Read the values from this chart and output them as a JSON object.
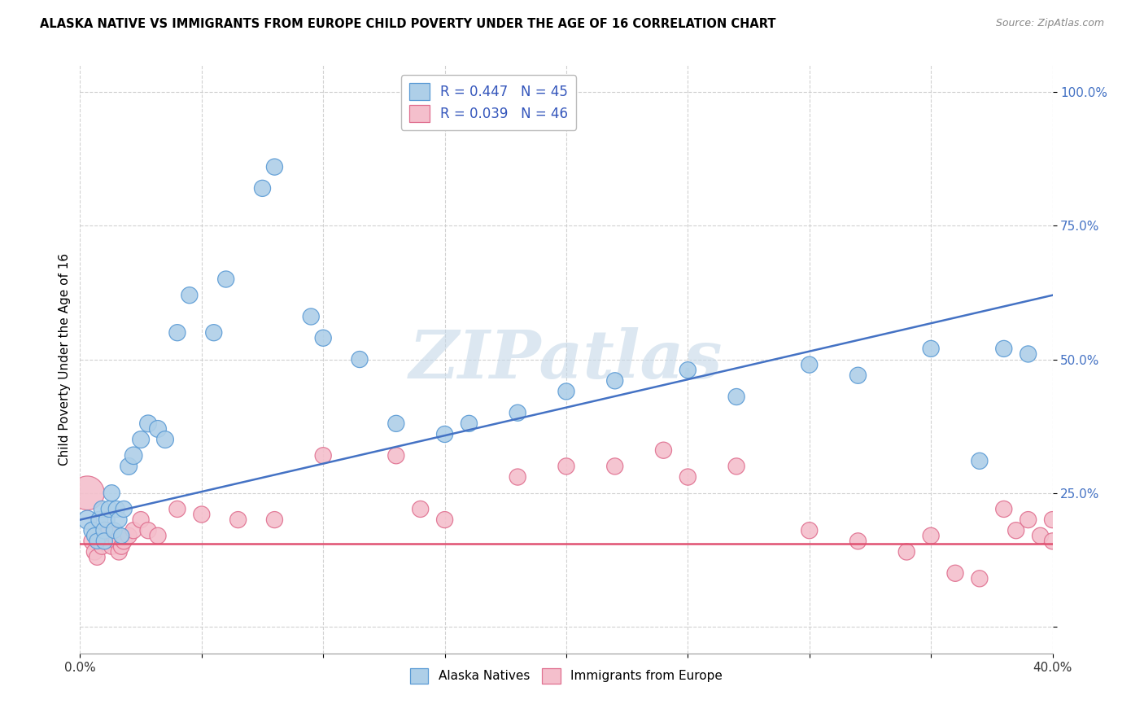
{
  "title": "ALASKA NATIVE VS IMMIGRANTS FROM EUROPE CHILD POVERTY UNDER THE AGE OF 16 CORRELATION CHART",
  "source": "Source: ZipAtlas.com",
  "ylabel": "Child Poverty Under the Age of 16",
  "xlim": [
    0.0,
    0.4
  ],
  "ylim": [
    -0.05,
    1.05
  ],
  "ytick_vals": [
    0.0,
    0.25,
    0.5,
    0.75,
    1.0
  ],
  "ytick_labels": [
    "",
    "25.0%",
    "50.0%",
    "75.0%",
    "100.0%"
  ],
  "xtick_vals": [
    0.0,
    0.05,
    0.1,
    0.15,
    0.2,
    0.25,
    0.3,
    0.35,
    0.4
  ],
  "xtick_labels": [
    "0.0%",
    "",
    "",
    "",
    "",
    "",
    "",
    "",
    "40.0%"
  ],
  "blue_R": 0.447,
  "blue_N": 45,
  "pink_R": 0.039,
  "pink_N": 46,
  "blue_color": "#aecfe8",
  "blue_edge_color": "#5b9bd5",
  "blue_line_color": "#4472c4",
  "pink_color": "#f4bfcc",
  "pink_edge_color": "#e07090",
  "pink_line_color": "#e05070",
  "legend_text_color": "#3355bb",
  "watermark": "ZIPatlas",
  "watermark_color": "#c5d8e8",
  "background_color": "#ffffff",
  "grid_color": "#cccccc",
  "blue_x": [
    0.003,
    0.005,
    0.006,
    0.007,
    0.008,
    0.009,
    0.01,
    0.01,
    0.011,
    0.012,
    0.013,
    0.014,
    0.015,
    0.016,
    0.017,
    0.018,
    0.02,
    0.022,
    0.025,
    0.028,
    0.032,
    0.035,
    0.04,
    0.045,
    0.055,
    0.06,
    0.075,
    0.08,
    0.095,
    0.1,
    0.115,
    0.13,
    0.15,
    0.16,
    0.18,
    0.2,
    0.22,
    0.25,
    0.27,
    0.3,
    0.32,
    0.35,
    0.37,
    0.38,
    0.39
  ],
  "blue_y": [
    0.2,
    0.18,
    0.17,
    0.16,
    0.2,
    0.22,
    0.18,
    0.16,
    0.2,
    0.22,
    0.25,
    0.18,
    0.22,
    0.2,
    0.17,
    0.22,
    0.3,
    0.32,
    0.35,
    0.38,
    0.37,
    0.35,
    0.55,
    0.62,
    0.55,
    0.65,
    0.82,
    0.86,
    0.58,
    0.54,
    0.5,
    0.38,
    0.36,
    0.38,
    0.4,
    0.44,
    0.46,
    0.48,
    0.43,
    0.49,
    0.47,
    0.52,
    0.31,
    0.52,
    0.51
  ],
  "blue_size": [
    55,
    45,
    40,
    38,
    45,
    42,
    45,
    42,
    40,
    42,
    42,
    40,
    42,
    40,
    38,
    42,
    45,
    48,
    45,
    45,
    45,
    45,
    42,
    42,
    42,
    42,
    42,
    42,
    42,
    42,
    42,
    42,
    42,
    42,
    42,
    42,
    42,
    42,
    42,
    42,
    42,
    42,
    42,
    42,
    42
  ],
  "pink_x": [
    0.003,
    0.005,
    0.006,
    0.007,
    0.008,
    0.009,
    0.01,
    0.011,
    0.012,
    0.013,
    0.014,
    0.015,
    0.016,
    0.017,
    0.018,
    0.02,
    0.022,
    0.025,
    0.028,
    0.032,
    0.04,
    0.05,
    0.065,
    0.08,
    0.1,
    0.13,
    0.14,
    0.15,
    0.18,
    0.2,
    0.22,
    0.24,
    0.25,
    0.27,
    0.3,
    0.32,
    0.34,
    0.35,
    0.36,
    0.37,
    0.38,
    0.385,
    0.39,
    0.395,
    0.4,
    0.4
  ],
  "pink_y": [
    0.25,
    0.16,
    0.14,
    0.13,
    0.16,
    0.15,
    0.17,
    0.16,
    0.18,
    0.15,
    0.17,
    0.16,
    0.14,
    0.15,
    0.16,
    0.17,
    0.18,
    0.2,
    0.18,
    0.17,
    0.22,
    0.21,
    0.2,
    0.2,
    0.32,
    0.32,
    0.22,
    0.2,
    0.28,
    0.3,
    0.3,
    0.33,
    0.28,
    0.3,
    0.18,
    0.16,
    0.14,
    0.17,
    0.1,
    0.09,
    0.22,
    0.18,
    0.2,
    0.17,
    0.16,
    0.2
  ],
  "pink_size": [
    180,
    45,
    42,
    40,
    42,
    40,
    42,
    40,
    42,
    40,
    42,
    40,
    42,
    40,
    42,
    42,
    42,
    42,
    42,
    42,
    42,
    42,
    42,
    42,
    42,
    42,
    42,
    42,
    42,
    42,
    42,
    42,
    42,
    42,
    42,
    42,
    42,
    42,
    42,
    42,
    42,
    42,
    42,
    42,
    42,
    42
  ]
}
